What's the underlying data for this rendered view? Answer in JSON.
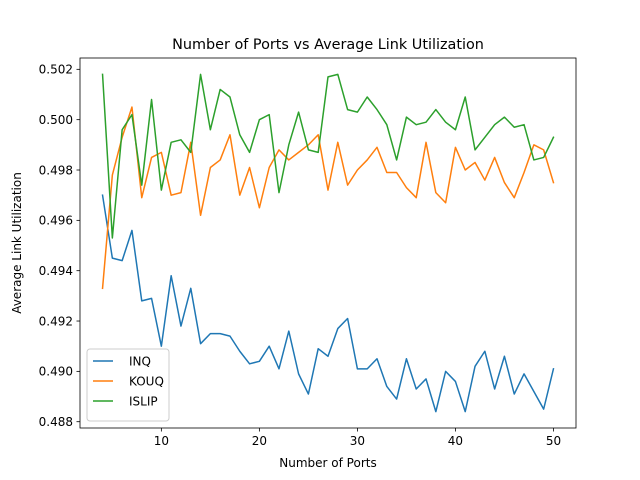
{
  "chart_data": {
    "type": "line",
    "title": "Number of Ports vs Average Link Utilization",
    "xlabel": "Number of Ports",
    "ylabel": "Average Link Utilization",
    "xlim": [
      1.7,
      52.3
    ],
    "ylim": [
      0.48775,
      0.50245
    ],
    "xticks": [
      10,
      20,
      30,
      40,
      50
    ],
    "yticks": [
      0.488,
      0.49,
      0.492,
      0.494,
      0.496,
      0.498,
      0.5,
      0.502
    ],
    "ytick_labels": [
      "0.488",
      "0.490",
      "0.492",
      "0.494",
      "0.496",
      "0.498",
      "0.500",
      "0.502"
    ],
    "grid": false,
    "legend_position": "lower-left",
    "x": [
      4,
      5,
      6,
      7,
      8,
      9,
      10,
      11,
      12,
      13,
      14,
      15,
      16,
      17,
      18,
      19,
      20,
      21,
      22,
      23,
      24,
      25,
      26,
      27,
      28,
      29,
      30,
      31,
      32,
      33,
      34,
      35,
      36,
      37,
      38,
      39,
      40,
      41,
      42,
      43,
      44,
      45,
      46,
      47,
      48,
      49,
      50
    ],
    "series": [
      {
        "name": "INQ",
        "color": "#1f77b4",
        "values": [
          0.497,
          0.4945,
          0.4944,
          0.4956,
          0.4928,
          0.4929,
          0.491,
          0.4938,
          0.4918,
          0.4933,
          0.4911,
          0.4915,
          0.4915,
          0.4914,
          0.4908,
          0.4903,
          0.4904,
          0.491,
          0.4901,
          0.4916,
          0.4899,
          0.4891,
          0.4909,
          0.4906,
          0.4917,
          0.4921,
          0.4901,
          0.4901,
          0.4905,
          0.4894,
          0.4889,
          0.4905,
          0.4893,
          0.4897,
          0.4884,
          0.49,
          0.4896,
          0.4884,
          0.4902,
          0.4908,
          0.4893,
          0.4906,
          0.4891,
          0.4899,
          0.4892,
          0.4885,
          0.4901
        ]
      },
      {
        "name": "KOUQ",
        "color": "#ff7f0e",
        "values": [
          0.4933,
          0.4978,
          0.4993,
          0.5005,
          0.4969,
          0.4985,
          0.4987,
          0.497,
          0.4971,
          0.4991,
          0.4962,
          0.4981,
          0.4984,
          0.4994,
          0.497,
          0.4981,
          0.4965,
          0.4981,
          0.4988,
          0.4984,
          0.4987,
          0.499,
          0.4994,
          0.4972,
          0.4991,
          0.4974,
          0.498,
          0.4984,
          0.4989,
          0.4979,
          0.4979,
          0.4973,
          0.4969,
          0.4991,
          0.4971,
          0.4967,
          0.4989,
          0.498,
          0.4983,
          0.4976,
          0.4985,
          0.4975,
          0.4969,
          0.4979,
          0.499,
          0.4988,
          0.4975
        ]
      },
      {
        "name": "ISLIP",
        "color": "#2ca02c",
        "values": [
          0.5018,
          0.4953,
          0.4996,
          0.5002,
          0.4974,
          0.5008,
          0.4972,
          0.4991,
          0.4992,
          0.4987,
          0.5018,
          0.4996,
          0.5012,
          0.5009,
          0.4994,
          0.4987,
          0.5,
          0.5002,
          0.4971,
          0.499,
          0.5003,
          0.4988,
          0.4987,
          0.5017,
          0.5018,
          0.5004,
          0.5003,
          0.5009,
          0.5004,
          0.4998,
          0.4984,
          0.5001,
          0.4998,
          0.4999,
          0.5004,
          0.4999,
          0.4996,
          0.5009,
          0.4988,
          0.4993,
          0.4998,
          0.5001,
          0.4997,
          0.4998,
          0.4984,
          0.4985,
          0.4993
        ]
      }
    ]
  }
}
